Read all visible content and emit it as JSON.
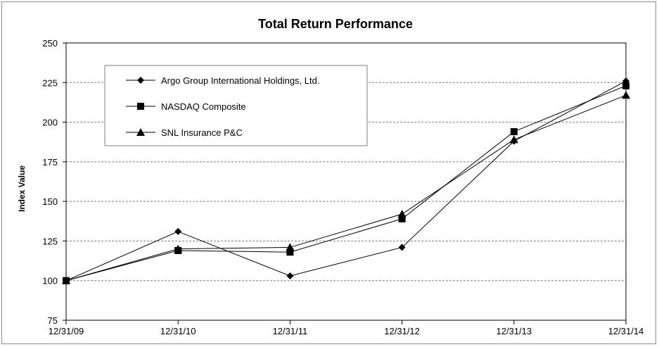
{
  "chart_data": {
    "type": "line",
    "title": "Total Return Performance",
    "xlabel": "",
    "ylabel": "Index Value",
    "categories": [
      "12/31/09",
      "12/31/10",
      "12/31/11",
      "12/31/12",
      "12/31/13",
      "12/31/14"
    ],
    "y_ticks": [
      "250",
      "225",
      "200",
      "175",
      "150",
      "125",
      "100",
      "75"
    ],
    "ylim": [
      75,
      250
    ],
    "grid": true,
    "legend_position": "top-left",
    "series": [
      {
        "name": "Argo Group International Holdings, Ltd.",
        "marker": "diamond",
        "color": "#000000",
        "values": [
          100,
          131,
          103,
          121,
          188,
          226
        ]
      },
      {
        "name": "NASDAQ Composite",
        "marker": "square",
        "color": "#000000",
        "values": [
          100,
          119,
          118,
          139,
          194,
          223
        ]
      },
      {
        "name": "SNL Insurance P&C",
        "marker": "triangle",
        "color": "#000000",
        "values": [
          100,
          120,
          121,
          142,
          189,
          217
        ]
      }
    ]
  }
}
